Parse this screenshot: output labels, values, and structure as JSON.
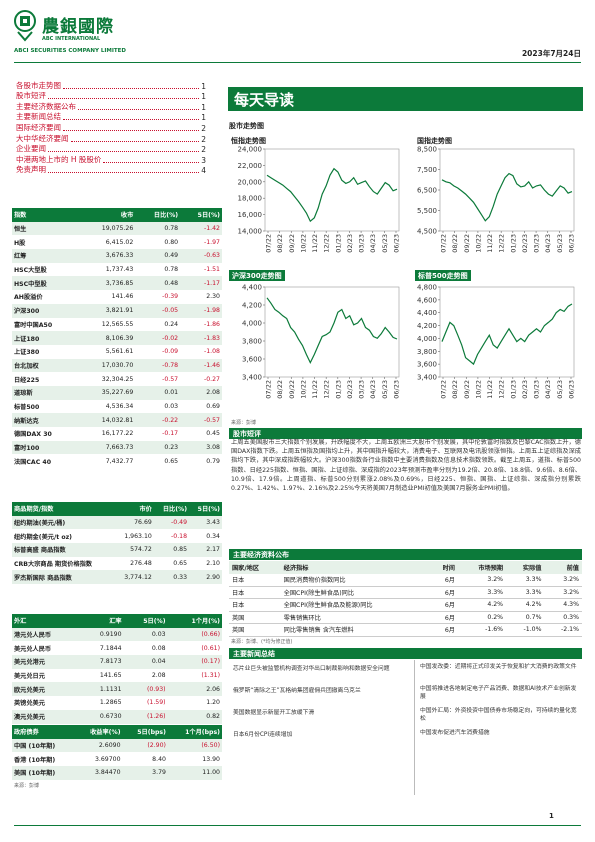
{
  "header": {
    "logo_cn": "農銀國際",
    "logo_en1": "ABC INTERNATIONAL",
    "logo_en2": "ABCI SECURITIES COMPANY LIMITED",
    "date": "2023年7月24日"
  },
  "toc": [
    {
      "label": "各股市走势图",
      "page": "1"
    },
    {
      "label": "股市短评",
      "page": "1"
    },
    {
      "label": "主要经济数据公布",
      "page": "1"
    },
    {
      "label": "主要新闻总结",
      "page": "1"
    },
    {
      "label": "国际经济要闻",
      "page": "2"
    },
    {
      "label": "大中华经济要闻",
      "page": "2"
    },
    {
      "label": "企业要闻",
      "page": "2"
    },
    {
      "label": "中港两地上市的 H 股股价",
      "page": "3"
    },
    {
      "label": "免责声明",
      "page": "4"
    }
  ],
  "index_table": {
    "headers": [
      "指数",
      "收市",
      "日比(%)",
      "5日(%)"
    ],
    "rows": [
      [
        "恒生",
        "19,075.26",
        "0.78",
        "-1.42"
      ],
      [
        "H股",
        "6,415.02",
        "0.80",
        "-1.97"
      ],
      [
        "红筹",
        "3,676.33",
        "0.49",
        "-0.63"
      ],
      [
        "HSC大型股",
        "1,737.43",
        "0.78",
        "-1.51"
      ],
      [
        "HSC中型股",
        "3,736.85",
        "0.48",
        "-1.17"
      ],
      [
        "AH股溢价",
        "141.46",
        "-0.39",
        "2.30"
      ],
      [
        "沪深300",
        "3,821.91",
        "-0.05",
        "-1.98"
      ],
      [
        "富时中国A50",
        "12,565.55",
        "0.24",
        "-1.86"
      ],
      [
        "上证180",
        "8,106.39",
        "-0.02",
        "-1.83"
      ],
      [
        "上证380",
        "5,561.61",
        "-0.09",
        "-1.08"
      ],
      [
        "台北加权",
        "17,030.70",
        "-0.78",
        "-1.46"
      ],
      [
        "日经225",
        "32,304.25",
        "-0.57",
        "-0.27"
      ],
      [
        "道琼斯",
        "35,227.69",
        "0.01",
        "2.08"
      ],
      [
        "标普500",
        "4,536.34",
        "0.03",
        "0.69"
      ],
      [
        "纳斯达克",
        "14,032.81",
        "-0.22",
        "-0.57"
      ],
      [
        "德国DAX 30",
        "16,177.22",
        "-0.17",
        "0.45"
      ],
      [
        "富时100",
        "7,663.73",
        "0.23",
        "3.08"
      ],
      [
        "法国CAC 40",
        "7,432.77",
        "0.65",
        "0.79"
      ]
    ]
  },
  "commodity_table": {
    "headers": [
      "商品期货/指数",
      "市价",
      "日比(%)",
      "5日(%)"
    ],
    "rows": [
      [
        "纽约期油(美元/桶)",
        "76.69",
        "-0.49",
        "3.43"
      ],
      [
        "纽约期金(美元/t oz)",
        "1,963.10",
        "-0.18",
        "0.34"
      ],
      [
        "标普高盛 商品指数",
        "574.72",
        "0.85",
        "2.17"
      ],
      [
        "CRB大宗商品 期货价格指数",
        "276.48",
        "0.65",
        "2.10"
      ],
      [
        "罗杰斯国际 商品指数",
        "3,774.12",
        "0.33",
        "2.90"
      ]
    ]
  },
  "fx_table": {
    "headers": [
      "外汇",
      "汇率",
      "5日(%)",
      "1个月(%)"
    ],
    "rows": [
      [
        "港元兑人民币",
        "0.9190",
        "0.03",
        "(0.66)"
      ],
      [
        "美元兑人民币",
        "7.1844",
        "0.08",
        "(0.61)"
      ],
      [
        "美元兑港元",
        "7.8173",
        "0.04",
        "(0.17)"
      ],
      [
        "美元兑日元",
        "141.65",
        "2.08",
        "(1.31)"
      ],
      [
        "欧元兑美元",
        "1.1131",
        "(0.93)",
        "2.06"
      ],
      [
        "英镑兑美元",
        "1.2865",
        "(1.59)",
        "1.20"
      ],
      [
        "澳元兑美元",
        "0.6730",
        "(1.26)",
        "0.82"
      ]
    ]
  },
  "bond_table": {
    "headers": [
      "政府债券",
      "收益率(%)",
      "5日(bps)",
      "1个月(bps)"
    ],
    "rows": [
      [
        "中国 (10年期)",
        "2.6090",
        "(2.90)",
        "(6.50)"
      ],
      [
        "香港 (10年期)",
        "3.69700",
        "8.40",
        "13.90"
      ],
      [
        "美国 (10年期)",
        "3.84470",
        "3.79",
        "11.00"
      ]
    ],
    "source": "来源：彭博"
  },
  "title": "每天导读",
  "charts_section": "股市走势图",
  "chart_data": [
    {
      "type": "line",
      "title": "恒指走势图",
      "ylim": [
        14000,
        24000
      ],
      "yticks": [
        "24,000",
        "22,000",
        "20,000",
        "18,000",
        "16,000",
        "14,000"
      ],
      "xticks": [
        "07/22",
        "08/22",
        "09/22",
        "10/22",
        "11/22",
        "12/22",
        "01/23",
        "02/23",
        "03/23",
        "04/23",
        "05/23",
        "06/23"
      ],
      "values": [
        20800,
        20500,
        20200,
        19900,
        19600,
        19200,
        18800,
        18200,
        17600,
        16900,
        16200,
        15200,
        15600,
        16800,
        18500,
        19500,
        20800,
        21600,
        21200,
        20200,
        19800,
        20000,
        20500,
        19700,
        19900,
        20100,
        19400,
        18800,
        18500,
        19200,
        19900,
        19600,
        18900,
        19100
      ]
    },
    {
      "type": "line",
      "title": "国指走势图",
      "ylim": [
        4500,
        8500
      ],
      "yticks": [
        "8,500",
        "7,500",
        "6,500",
        "5,500",
        "4,500"
      ],
      "xticks": [
        "07/22",
        "08/22",
        "09/22",
        "10/22",
        "11/22",
        "12/22",
        "01/23",
        "02/23",
        "03/23",
        "04/23",
        "05/23",
        "06/23"
      ],
      "values": [
        7000,
        6900,
        6850,
        6700,
        6600,
        6450,
        6300,
        6100,
        5900,
        5600,
        5300,
        5000,
        5200,
        5700,
        6300,
        6700,
        7100,
        7300,
        7200,
        6800,
        6650,
        6700,
        6900,
        6600,
        6700,
        6750,
        6500,
        6300,
        6200,
        6450,
        6700,
        6600,
        6350,
        6420
      ]
    },
    {
      "type": "line",
      "title": "沪深300走势图",
      "ylim": [
        3400,
        4400
      ],
      "yticks": [
        "4,400",
        "4,200",
        "4,000",
        "3,800",
        "3,600",
        "3,400"
      ],
      "xticks": [
        "07/22",
        "08/22",
        "09/22",
        "10/22",
        "11/22",
        "12/22",
        "01/23",
        "02/23",
        "03/23",
        "04/23",
        "05/23",
        "06/23"
      ],
      "values": [
        4280,
        4220,
        4150,
        4120,
        4080,
        4050,
        3950,
        3900,
        3820,
        3750,
        3650,
        3560,
        3650,
        3750,
        3850,
        3870,
        3900,
        4000,
        4120,
        4150,
        4050,
        4080,
        3980,
        4000,
        4050,
        3950,
        3920,
        3850,
        3830,
        3880,
        3950,
        3900,
        3840,
        3822
      ]
    },
    {
      "type": "line",
      "title": "标普500走势图",
      "ylim": [
        3400,
        4800
      ],
      "yticks": [
        "4,800",
        "4,600",
        "4,400",
        "4,200",
        "4,000",
        "3,800",
        "3,600",
        "3,400"
      ],
      "xticks": [
        "07/22",
        "08/22",
        "09/22",
        "10/22",
        "11/22",
        "12/22",
        "01/23",
        "02/23",
        "03/23",
        "04/23",
        "05/23",
        "06/23"
      ],
      "values": [
        3950,
        4100,
        4250,
        4200,
        4050,
        3900,
        3700,
        3650,
        3600,
        3750,
        3850,
        3950,
        4050,
        3900,
        3850,
        3950,
        4050,
        4150,
        4050,
        3950,
        4000,
        3950,
        4050,
        4100,
        4150,
        4100,
        4200,
        4250,
        4300,
        4400,
        4450,
        4420,
        4500,
        4536
      ]
    }
  ],
  "chart_source": "来源：彭博",
  "commentary": {
    "title": "股市短评",
    "text": "上周五美国股市三大指数个别发展，升跌幅度不大，上周五欧洲三大股市个别发展，其中伦敦富时指数及巴黎CAC指数上升，德国DAX指数下跌。上周五恒指及国指均上升，其中国指升幅较大，消费电子、互联网及电讯股领涨恒指。上周五上证综指及深成指均下跌，其中深成指跌幅较大。沪深300指数各行业指数中主要消费指数及信息技术指数领跌。截至上周五，道指、标普500指数、日经225指数、恒指、国指、上证综指、深成指的2023年预测市盈率分别为19.2倍、20.8倍、18.8倍、9.6倍、8.6倍、10.9倍、17.9倍。上周道指、标普500分别累涨2.08%及0.69%，日经225、恒指、国指、上证综指、深成指分别累跌0.27%、1.42%、1.97%、2.16%及2.25%今天将美国7月制造业PMI初值及美国7月服务业PMI初值。"
  },
  "econ": {
    "title": "主要经济资料公布",
    "headers": [
      "国家/地区",
      "经济指标",
      "时间",
      "市场预期",
      "实际值",
      "前值"
    ],
    "rows": [
      [
        "日本",
        "国民消费物价指数同比",
        "6月",
        "3.2%",
        "3.3%",
        "3.2%"
      ],
      [
        "日本",
        "全国CPI(除生鲜食品)同比",
        "6月",
        "3.3%",
        "3.3%",
        "3.2%"
      ],
      [
        "日本",
        "全国CPI(除生鲜食品及能源)同比",
        "6月",
        "4.2%",
        "4.2%",
        "4.3%"
      ],
      [
        "英国",
        "零售销售环比",
        "6月",
        "0.2%",
        "0.7%",
        "0.3%"
      ],
      [
        "英国",
        "同比零售销售 含汽车燃料",
        "6月",
        "-1.6%",
        "-1.0%",
        "-2.1%"
      ]
    ],
    "source": "来源：彭博、(*均为修正值)"
  },
  "news": {
    "title": "主要新闻总结",
    "left": [
      "芯片业巨头被监管机构调查对华出口制裁影响和数据安全问题",
      "俄罗斯“清除之王”瓦格纳集团雇佣兵团撤离乌克兰",
      "美国数据显示新屋开工放缓下滑",
      "日本6月份CPI连续增加"
    ],
    "right": [
      "中国发改委：近期将正式印发关于恢复和扩大消费的政策文件",
      "中国将推进各地制定电子产品消费、数据和AI技术产业创新发展",
      "中国外汇局：外资投资中国债券市场稳定向，可持续的量化宽松",
      "中国发布促进汽车消费措施"
    ]
  },
  "footer": {
    "page": "1"
  }
}
